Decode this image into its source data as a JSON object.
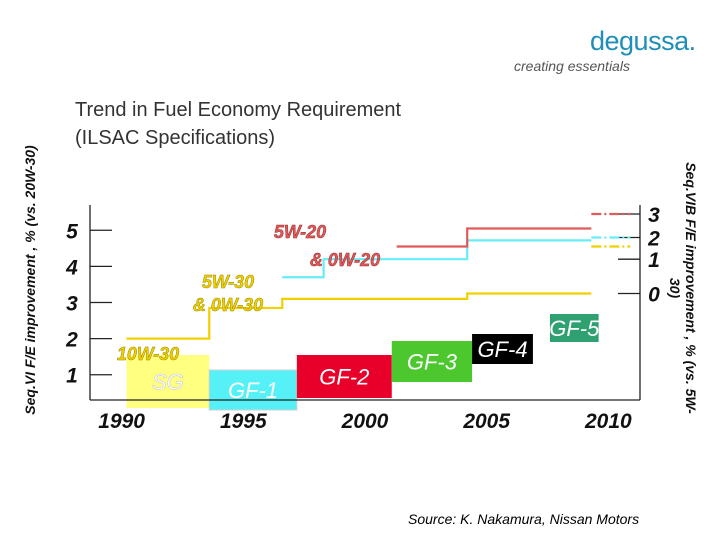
{
  "brand": {
    "name": "degussa.",
    "tagline": "creating essentials"
  },
  "title_lines": [
    "Trend in Fuel Economy Requirement",
    "(ILSAC Specifications)"
  ],
  "source": "Source: K. Nakamura, Nissan Motors",
  "chart_data": {
    "type": "line",
    "title": "Trend in Fuel Economy Requirement (ILSAC Specifications)",
    "xlabel": "",
    "ylabel_left": "Seq.VI F/E improvement , % (vs. 20W-30)",
    "ylabel_right": "Seq.VIB F/E improvement , % (vs. 5W-30)",
    "x_ticks": [
      "1990",
      "1995",
      "2000",
      "2005",
      "2010"
    ],
    "xlim": [
      1988.7,
      2011.3
    ],
    "y_left_ticks": [
      "1",
      "2",
      "3",
      "4",
      "5"
    ],
    "y_left_values": [
      1,
      2,
      3,
      4,
      5
    ],
    "ylim_left": [
      0.3,
      5.7
    ],
    "y_right_ticks": [
      "0",
      "1",
      "2",
      "3"
    ],
    "y_right_values": [
      0,
      1,
      2,
      3
    ],
    "y_right_positions_on_left_scale": [
      3.25,
      4.2,
      4.8,
      5.45
    ],
    "series": [
      {
        "name": "10W-30",
        "color": "#f2d000",
        "dash": "solid",
        "points": [
          [
            1990.2,
            2.0
          ],
          [
            1993.6,
            2.0
          ],
          [
            1993.6,
            2.85
          ],
          [
            1996.6,
            2.85
          ],
          [
            1996.6,
            3.1
          ],
          [
            2004.2,
            3.1
          ],
          [
            2004.2,
            3.25
          ],
          [
            2009.3,
            3.25
          ]
        ]
      },
      {
        "name": "5W-30 & 0W-30",
        "color": "#f2d000",
        "dash": "dashed",
        "points": [
          [
            2009.3,
            4.55
          ],
          [
            2010.9,
            4.55
          ]
        ]
      },
      {
        "name": "5W-30 & 0W-30",
        "color": "#66eef8",
        "dash": "solid",
        "points": [
          [
            1996.6,
            3.7
          ],
          [
            1998.3,
            3.7
          ],
          [
            1998.3,
            4.2
          ],
          [
            2004.2,
            4.2
          ],
          [
            2004.2,
            4.72
          ],
          [
            2009.3,
            4.72
          ]
        ]
      },
      {
        "name": "5W-30 & 0W-30",
        "color": "#66eef8",
        "dash": "dashed",
        "points": [
          [
            2009.3,
            4.8
          ],
          [
            2010.9,
            4.8
          ]
        ]
      },
      {
        "name": "5W-20 & 0W-20",
        "color": "#e05a5a",
        "dash": "solid",
        "points": [
          [
            2001.3,
            4.55
          ],
          [
            2004.2,
            4.55
          ],
          [
            2004.2,
            5.05
          ],
          [
            2009.3,
            5.05
          ]
        ]
      },
      {
        "name": "5W-20 & 0W-20",
        "color": "#e05a5a",
        "dash": "dashed",
        "points": [
          [
            2009.3,
            5.45
          ],
          [
            2010.9,
            5.45
          ]
        ]
      }
    ],
    "series_labels": [
      "10W-30",
      "5W-30",
      "& 0W-30",
      "5W-20",
      "& 0W-20"
    ],
    "specifications": [
      {
        "name": "SG",
        "start": 1990.2,
        "end": 1993.6,
        "color": "#ffff80",
        "text_color": "#ffffff"
      },
      {
        "name": "GF-1",
        "start": 1993.6,
        "end": 1997.2,
        "color": "#55f1f7",
        "text_color": "#ffffff"
      },
      {
        "name": "GF-2",
        "start": 1997.2,
        "end": 2001.1,
        "color": "#e8002a",
        "text_color": "#ffffff"
      },
      {
        "name": "GF-3",
        "start": 2001.1,
        "end": 2004.4,
        "color": "#4cc82e",
        "text_color": "#ffffff"
      },
      {
        "name": "GF-4",
        "start": 2004.4,
        "end": 2006.9,
        "color": "#000000",
        "text_color": "#ffffff"
      },
      {
        "name": "GF-5",
        "start": 2007.6,
        "end": 2009.6,
        "color": "#2fa070",
        "text_color": "#ffffff"
      }
    ]
  }
}
